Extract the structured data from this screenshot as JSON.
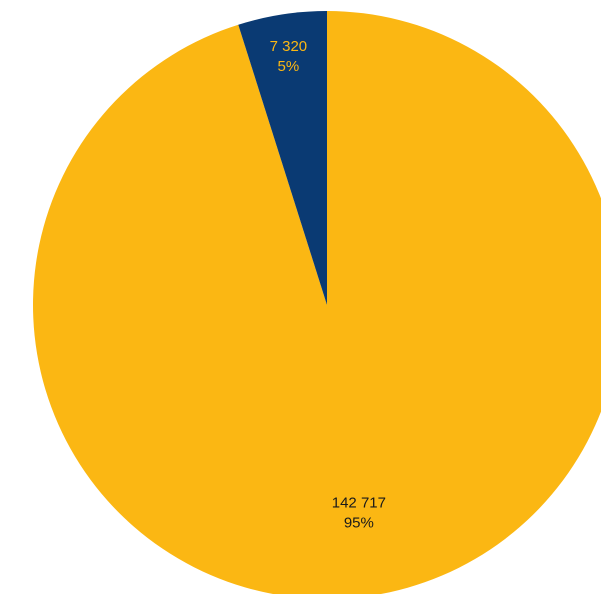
{
  "chart_data": {
    "type": "pie",
    "categories": [
      "",
      ""
    ],
    "values": [
      142717,
      7320
    ],
    "percent_labels": [
      "95%",
      "5%"
    ],
    "value_labels": [
      "142 717",
      "7 320"
    ],
    "colors": [
      "#FBB713",
      "#0A3A73"
    ],
    "label_colors": [
      "#1a1a1a",
      "#FBB713"
    ],
    "start": "top",
    "direction": "clockwise",
    "legend": "none"
  }
}
